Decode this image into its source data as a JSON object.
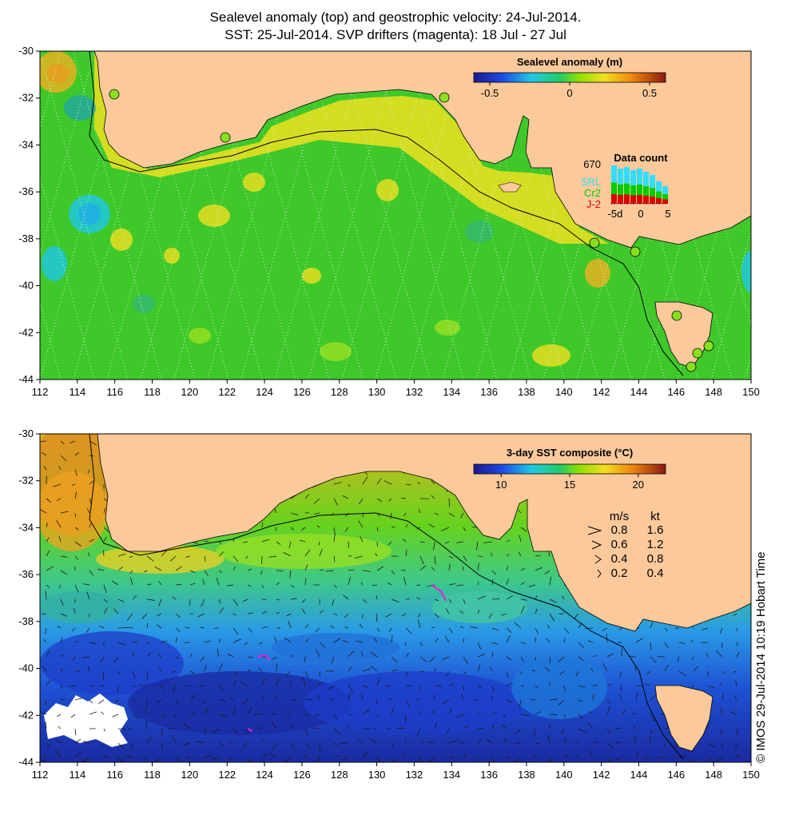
{
  "header": {
    "line1": "Sealevel anomaly (top) and geostrophic velocity: 24-Jul-2014.",
    "line2": "SST: 25-Jul-2014. SVP drifters (magenta): 18 Jul - 27 Jul"
  },
  "top_map": {
    "colorbar_title": "Sealevel anomaly (m)",
    "colorbar_ticks": [
      "-0.5",
      "0",
      "0.5"
    ],
    "colorbar_range": [
      -0.6,
      0.6
    ],
    "data_count": {
      "title": "Data count",
      "max_label": "670",
      "series": [
        {
          "name": "SRL",
          "color": "#33ddff"
        },
        {
          "name": "Cr2",
          "color": "#00cc00"
        },
        {
          "name": "J-2",
          "color": "#dd0000"
        }
      ],
      "x_ticks": [
        "-5d",
        "0",
        "5"
      ]
    }
  },
  "bottom_map": {
    "colorbar_title": "3-day SST composite (°C)",
    "colorbar_ticks": [
      "10",
      "15",
      "20"
    ],
    "colorbar_range": [
      8,
      22
    ],
    "speed_legend": {
      "header_ms": "m/s",
      "header_kt": "kt",
      "rows": [
        {
          "ms": "0.8",
          "kt": "1.6"
        },
        {
          "ms": "0.6",
          "kt": "1.2"
        },
        {
          "ms": "0.4",
          "kt": "0.8"
        },
        {
          "ms": "0.2",
          "kt": "0.4"
        }
      ]
    }
  },
  "axes": {
    "lon_ticks": [
      "112",
      "114",
      "116",
      "118",
      "120",
      "122",
      "124",
      "126",
      "128",
      "130",
      "132",
      "134",
      "136",
      "138",
      "140",
      "142",
      "144",
      "146",
      "148",
      "150"
    ],
    "lat_ticks": [
      "-30",
      "-32",
      "-34",
      "-36",
      "-38",
      "-40",
      "-42",
      "-44"
    ],
    "lon_range": [
      112,
      150
    ],
    "lat_range": [
      -44,
      -30
    ]
  },
  "colors": {
    "land": "#fcc99b",
    "ocean_mid": "#44cc22",
    "coast": "#000000"
  },
  "credit": "© IMOS 29-Jul-2014 10:19 Hobart Time"
}
